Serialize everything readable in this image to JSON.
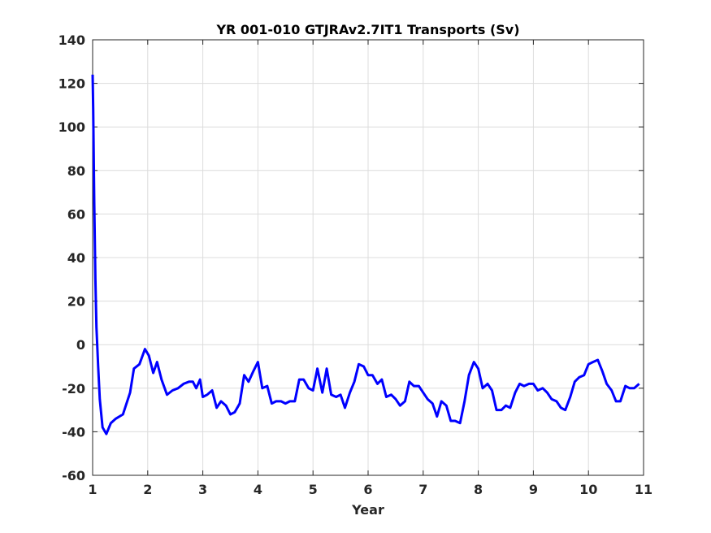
{
  "chart_data": {
    "type": "line",
    "title": "YR 001-010 GTJRAv2.7IT1 Transports (Sv)",
    "xlabel": "Year",
    "ylabel": "",
    "xlim": [
      1,
      11
    ],
    "ylim": [
      -60,
      140
    ],
    "xticks": [
      1,
      2,
      3,
      4,
      5,
      6,
      7,
      8,
      9,
      10,
      11
    ],
    "yticks": [
      -60,
      -40,
      -20,
      0,
      20,
      40,
      60,
      80,
      100,
      120,
      140
    ],
    "grid": true,
    "line_color": "#0000ff",
    "series": [
      {
        "x": [
          1.0,
          1.01,
          1.03,
          1.05,
          1.07,
          1.1,
          1.13,
          1.18,
          1.25,
          1.33,
          1.42,
          1.55,
          1.68,
          1.75,
          1.85,
          1.95,
          2.02,
          2.1,
          2.17,
          2.25,
          2.35,
          2.45,
          2.55,
          2.65,
          2.75,
          2.82,
          2.88,
          2.95,
          3.0,
          3.08,
          3.17,
          3.25,
          3.33,
          3.42,
          3.5,
          3.58,
          3.67,
          3.75,
          3.83,
          3.92,
          4.0,
          4.08,
          4.17,
          4.25,
          4.33,
          4.42,
          4.5,
          4.58,
          4.67,
          4.75,
          4.83,
          4.92,
          5.0,
          5.08,
          5.17,
          5.25,
          5.33,
          5.42,
          5.5,
          5.58,
          5.67,
          5.75,
          5.83,
          5.92,
          6.0,
          6.08,
          6.17,
          6.25,
          6.33,
          6.42,
          6.5,
          6.58,
          6.67,
          6.75,
          6.83,
          6.92,
          7.0,
          7.08,
          7.17,
          7.25,
          7.33,
          7.42,
          7.5,
          7.58,
          7.67,
          7.75,
          7.83,
          7.92,
          8.0,
          8.08,
          8.17,
          8.25,
          8.33,
          8.42,
          8.5,
          8.58,
          8.67,
          8.75,
          8.83,
          8.92,
          9.0,
          9.08,
          9.17,
          9.25,
          9.33,
          9.42,
          9.5,
          9.58,
          9.67,
          9.75,
          9.83,
          9.92,
          10.0,
          10.08,
          10.17,
          10.25,
          10.33,
          10.42,
          10.5,
          10.58,
          10.67,
          10.75,
          10.83,
          10.92
        ],
        "y": [
          124,
          108,
          65,
          30,
          8,
          -10,
          -25,
          -38,
          -41,
          -36,
          -34,
          -32,
          -22,
          -11,
          -9,
          -2,
          -5,
          -13,
          -8,
          -16,
          -23,
          -21,
          -20,
          -18,
          -17,
          -17,
          -20,
          -16,
          -24,
          -23,
          -21,
          -29,
          -26,
          -28,
          -32,
          -31,
          -27,
          -14,
          -17,
          -12,
          -8,
          -20,
          -19,
          -27,
          -26,
          -26,
          -27,
          -26,
          -26,
          -16,
          -16,
          -20,
          -21,
          -11,
          -22,
          -11,
          -23,
          -24,
          -23,
          -29,
          -22,
          -17,
          -9,
          -10,
          -14,
          -14,
          -18,
          -16,
          -24,
          -23,
          -25,
          -28,
          -26,
          -17,
          -19,
          -19,
          -22,
          -25,
          -27,
          -33,
          -26,
          -28,
          -35,
          -35,
          -36,
          -26,
          -14,
          -8,
          -11,
          -20,
          -18,
          -21,
          -30,
          -30,
          -28,
          -29,
          -22,
          -18,
          -19,
          -18,
          -18,
          -21,
          -20,
          -22,
          -25,
          -26,
          -29,
          -30,
          -24,
          -17,
          -15,
          -14,
          -9,
          -8,
          -7,
          -12,
          -18,
          -21,
          -26,
          -26,
          -19,
          -20,
          -20,
          -18
        ]
      }
    ]
  }
}
